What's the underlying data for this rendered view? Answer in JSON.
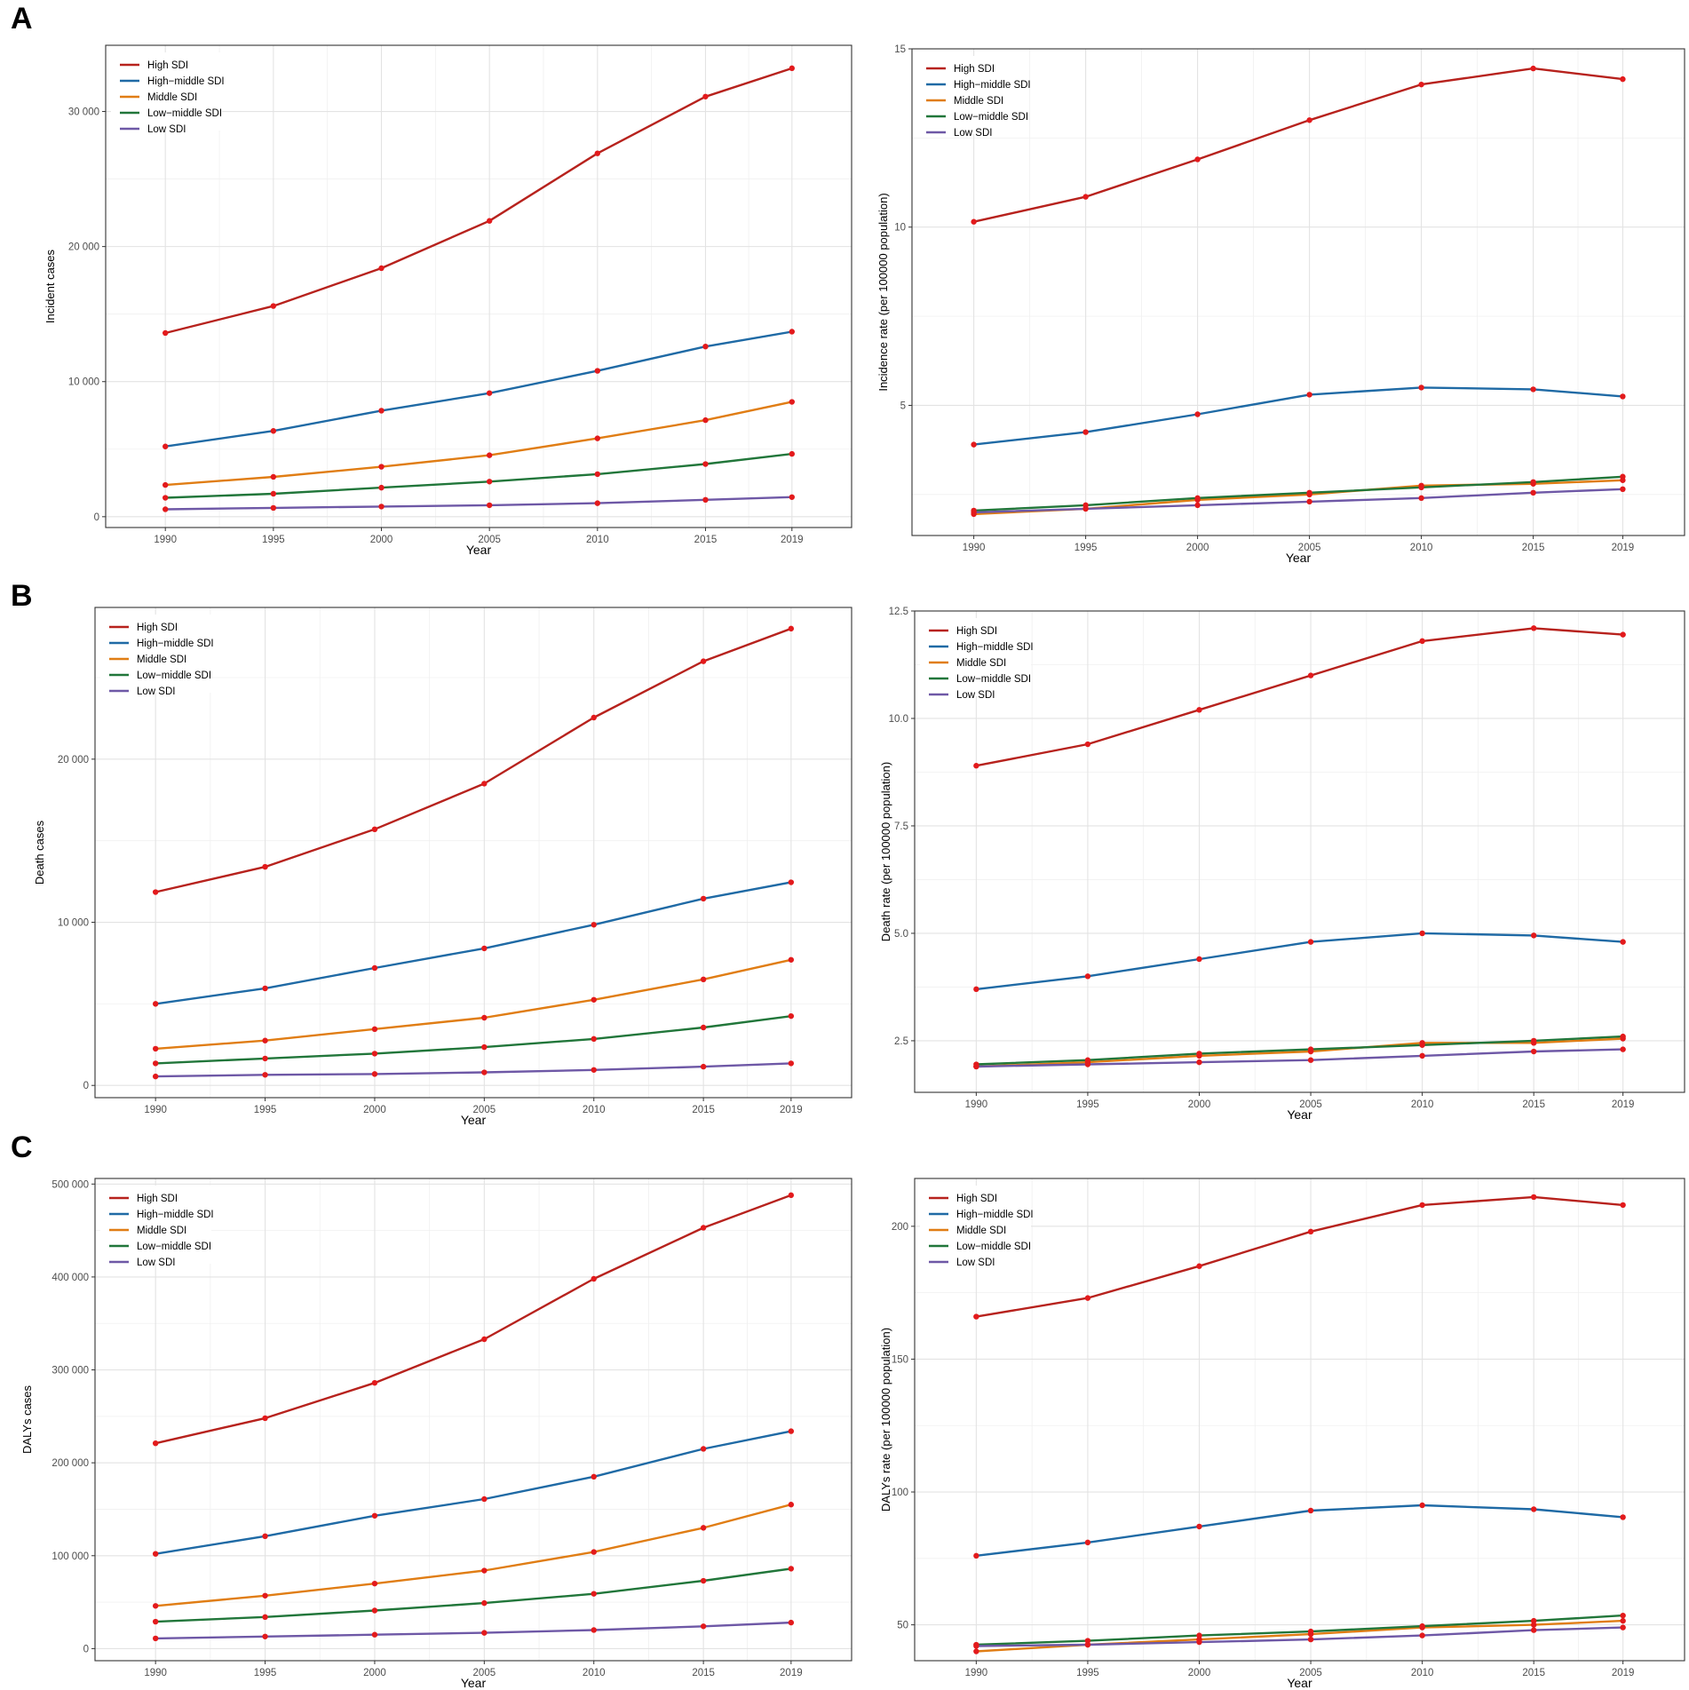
{
  "panel_labels": [
    "A",
    "B",
    "C"
  ],
  "colors": {
    "High SDI": "#B7221D",
    "High-middle SDI": "#1F6AA5",
    "Middle SDI": "#E07D14",
    "Low-middle SDI": "#21763A",
    "Low SDI": "#6E58A6",
    "point": "#E31A1C"
  },
  "chart_data": [
    {
      "id": "A-left",
      "type": "line",
      "title": "",
      "xlabel": "Year",
      "ylabel": "Incident cases",
      "x": [
        1990,
        1995,
        2000,
        2005,
        2010,
        2015,
        2019
      ],
      "xticks": [
        "1990",
        "1995",
        "2000",
        "2005",
        "2010",
        "2015",
        "2019"
      ],
      "ylim": [
        -800,
        34900
      ],
      "yticks": [
        0,
        10000,
        20000,
        30000
      ],
      "ytick_labels": [
        "0",
        "10 000",
        "20 000",
        "30 000"
      ],
      "grid": true,
      "legend_position": "top-left",
      "series": [
        {
          "name": "High SDI",
          "values": [
            13600,
            15600,
            18400,
            21900,
            26900,
            31100,
            33200
          ]
        },
        {
          "name": "High−middle SDI",
          "values": [
            5200,
            6350,
            7850,
            9150,
            10800,
            12600,
            13700
          ]
        },
        {
          "name": "Middle SDI",
          "values": [
            2350,
            2950,
            3700,
            4550,
            5800,
            7150,
            8500
          ]
        },
        {
          "name": "Low−middle SDI",
          "values": [
            1400,
            1700,
            2150,
            2600,
            3150,
            3900,
            4650
          ]
        },
        {
          "name": "Low SDI",
          "values": [
            550,
            650,
            750,
            850,
            1000,
            1250,
            1450
          ]
        }
      ]
    },
    {
      "id": "A-right",
      "type": "line",
      "title": "",
      "xlabel": "Year",
      "ylabel": "Incidence rate (per 100000 population)",
      "x": [
        1990,
        1995,
        2000,
        2005,
        2010,
        2015,
        2019
      ],
      "xticks": [
        "1990",
        "1995",
        "2000",
        "2005",
        "2010",
        "2015",
        "2019"
      ],
      "ylim": [
        1.35,
        15.0
      ],
      "yticks": [
        5,
        10,
        15
      ],
      "ytick_labels": [
        "5",
        "10",
        "15"
      ],
      "grid": true,
      "legend_position": "top-left",
      "series": [
        {
          "name": "High SDI",
          "values": [
            10.15,
            10.85,
            11.9,
            13.0,
            14.0,
            14.45,
            14.15
          ]
        },
        {
          "name": "High−middle SDI",
          "values": [
            3.9,
            4.25,
            4.75,
            5.3,
            5.5,
            5.45,
            5.25
          ]
        },
        {
          "name": "Middle SDI",
          "values": [
            1.95,
            2.1,
            2.35,
            2.5,
            2.75,
            2.8,
            2.9
          ]
        },
        {
          "name": "Low−middle SDI",
          "values": [
            2.05,
            2.2,
            2.4,
            2.55,
            2.7,
            2.85,
            3.0
          ]
        },
        {
          "name": "Low SDI",
          "values": [
            2.0,
            2.1,
            2.2,
            2.3,
            2.4,
            2.55,
            2.65
          ]
        }
      ]
    },
    {
      "id": "B-left",
      "type": "line",
      "title": "",
      "xlabel": "Year",
      "ylabel": "Death cases",
      "x": [
        1990,
        1995,
        2000,
        2005,
        2010,
        2015,
        2019
      ],
      "xticks": [
        "1990",
        "1995",
        "2000",
        "2005",
        "2010",
        "2015",
        "2019"
      ],
      "ylim": [
        -750,
        29300
      ],
      "yticks": [
        0,
        10000,
        20000
      ],
      "ytick_labels": [
        "0",
        "10 000",
        "20 000"
      ],
      "grid": true,
      "legend_position": "top-left",
      "series": [
        {
          "name": "High SDI",
          "values": [
            11850,
            13400,
            15700,
            18500,
            22550,
            26000,
            28000
          ]
        },
        {
          "name": "High−middle SDI",
          "values": [
            5000,
            5950,
            7200,
            8400,
            9850,
            11450,
            12450
          ]
        },
        {
          "name": "Middle SDI",
          "values": [
            2250,
            2750,
            3450,
            4150,
            5250,
            6500,
            7700
          ]
        },
        {
          "name": "Low−middle SDI",
          "values": [
            1350,
            1650,
            1950,
            2350,
            2850,
            3550,
            4250
          ]
        },
        {
          "name": "Low SDI",
          "values": [
            550,
            650,
            700,
            800,
            950,
            1150,
            1350
          ]
        }
      ]
    },
    {
      "id": "B-right",
      "type": "line",
      "title": "",
      "xlabel": "Year",
      "ylabel": "Death rate (per 100000 population)",
      "x": [
        1990,
        1995,
        2000,
        2005,
        2010,
        2015,
        2019
      ],
      "xticks": [
        "1990",
        "1995",
        "2000",
        "2005",
        "2010",
        "2015",
        "2019"
      ],
      "ylim": [
        1.3,
        12.5
      ],
      "yticks": [
        2.5,
        5.0,
        7.5,
        10.0,
        12.5
      ],
      "ytick_labels": [
        "2.5",
        "5.0",
        "7.5",
        "10.0",
        "12.5"
      ],
      "grid": true,
      "legend_position": "top-left",
      "series": [
        {
          "name": "High SDI",
          "values": [
            8.9,
            9.4,
            10.2,
            11.0,
            11.8,
            12.1,
            11.95
          ]
        },
        {
          "name": "High−middle SDI",
          "values": [
            3.7,
            4.0,
            4.4,
            4.8,
            5.0,
            4.95,
            4.8
          ]
        },
        {
          "name": "Middle SDI",
          "values": [
            1.9,
            2.0,
            2.15,
            2.25,
            2.45,
            2.45,
            2.55
          ]
        },
        {
          "name": "Low−middle SDI",
          "values": [
            1.95,
            2.05,
            2.2,
            2.3,
            2.4,
            2.5,
            2.6
          ]
        },
        {
          "name": "Low SDI",
          "values": [
            1.9,
            1.95,
            2.0,
            2.05,
            2.15,
            2.25,
            2.3
          ]
        }
      ]
    },
    {
      "id": "C-left",
      "type": "line",
      "title": "",
      "xlabel": "Year",
      "ylabel": "DALYs cases",
      "x": [
        1990,
        1995,
        2000,
        2005,
        2010,
        2015,
        2019
      ],
      "xticks": [
        "1990",
        "1995",
        "2000",
        "2005",
        "2010",
        "2015",
        "2019"
      ],
      "ylim": [
        -13000,
        506000
      ],
      "yticks": [
        0,
        100000,
        200000,
        300000,
        400000,
        500000
      ],
      "ytick_labels": [
        "0",
        "100 000",
        "200 000",
        "300 000",
        "400 000",
        "500 000"
      ],
      "grid": true,
      "legend_position": "top-left",
      "series": [
        {
          "name": "High SDI",
          "values": [
            221000,
            248000,
            286000,
            333000,
            398000,
            453000,
            488000
          ]
        },
        {
          "name": "High−middle SDI",
          "values": [
            102000,
            121000,
            143000,
            161000,
            185000,
            215000,
            234000
          ]
        },
        {
          "name": "Middle SDI",
          "values": [
            46000,
            57000,
            70000,
            84000,
            104000,
            130000,
            155000
          ]
        },
        {
          "name": "Low−middle SDI",
          "values": [
            29000,
            34000,
            41000,
            49000,
            59000,
            73000,
            86000
          ]
        },
        {
          "name": "Low SDI",
          "values": [
            11000,
            13000,
            15000,
            17000,
            20000,
            24000,
            28000
          ]
        }
      ]
    },
    {
      "id": "C-right",
      "type": "line",
      "title": "",
      "xlabel": "Year",
      "ylabel": "DALYs rate (per 100000 population)",
      "x": [
        1990,
        1995,
        2000,
        2005,
        2010,
        2015,
        2019
      ],
      "xticks": [
        "1990",
        "1995",
        "2000",
        "2005",
        "2010",
        "2015",
        "2019"
      ],
      "ylim": [
        36.5,
        218
      ],
      "yticks": [
        50,
        100,
        150,
        200
      ],
      "ytick_labels": [
        "50",
        "100",
        "150",
        "200"
      ],
      "grid": true,
      "legend_position": "top-left",
      "series": [
        {
          "name": "High SDI",
          "values": [
            166,
            173,
            185,
            198,
            208,
            211,
            208
          ]
        },
        {
          "name": "High−middle SDI",
          "values": [
            76,
            81,
            87,
            93,
            95,
            93.5,
            90.5
          ]
        },
        {
          "name": "Middle SDI",
          "values": [
            40,
            42.5,
            44.5,
            46.5,
            49,
            50,
            51.5
          ]
        },
        {
          "name": "Low−middle SDI",
          "values": [
            42.5,
            44,
            46,
            47.5,
            49.5,
            51.5,
            53.5
          ]
        },
        {
          "name": "Low SDI",
          "values": [
            42,
            42.5,
            43.5,
            44.5,
            46,
            48,
            49
          ]
        }
      ]
    }
  ]
}
